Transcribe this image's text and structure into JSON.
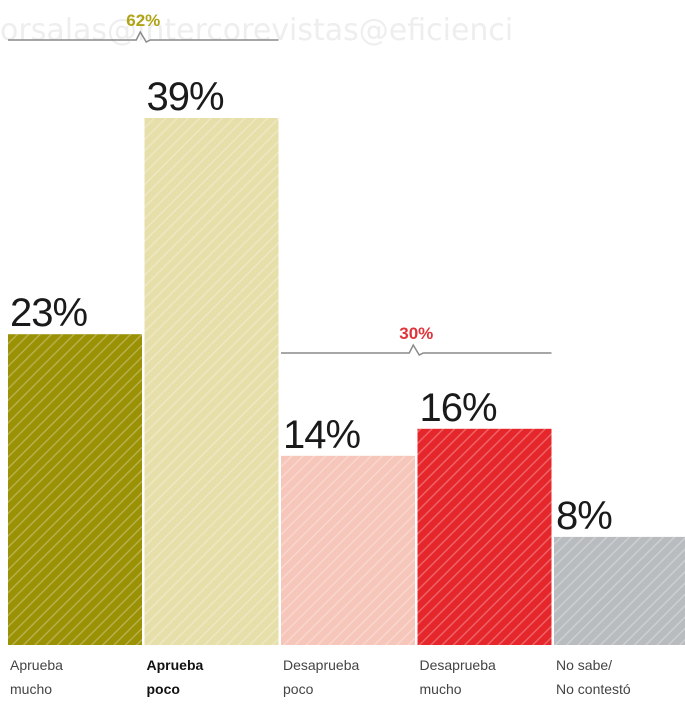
{
  "watermark": "orsalas@intercorevistas@eficienci",
  "chart_data": {
    "type": "bar",
    "categories": [
      {
        "line1": "Aprueba",
        "line2": "mucho",
        "bold": false
      },
      {
        "line1": "Aprueba",
        "line2": "poco",
        "bold": true
      },
      {
        "line1": "Desaprueba",
        "line2": "poco",
        "bold": false
      },
      {
        "line1": "Desaprueba",
        "line2": "mucho",
        "bold": false
      },
      {
        "line1": "No sabe/",
        "line2": "No contestó",
        "bold": false
      }
    ],
    "values": [
      23,
      39,
      14,
      16,
      8
    ],
    "value_labels": [
      "23%",
      "39%",
      "14%",
      "16%",
      "8%"
    ],
    "colors": [
      "#9a9105",
      "#e6dfaa",
      "#f6c6ba",
      "#e5262b",
      "#b9bcbf"
    ],
    "ylim": [
      0,
      39
    ],
    "grid": false,
    "legend": "none",
    "groups": [
      {
        "label": "62%",
        "from": 0,
        "to": 1,
        "color": "#b1a316"
      },
      {
        "label": "30%",
        "from": 2,
        "to": 3,
        "color": "#e0333a"
      }
    ]
  }
}
